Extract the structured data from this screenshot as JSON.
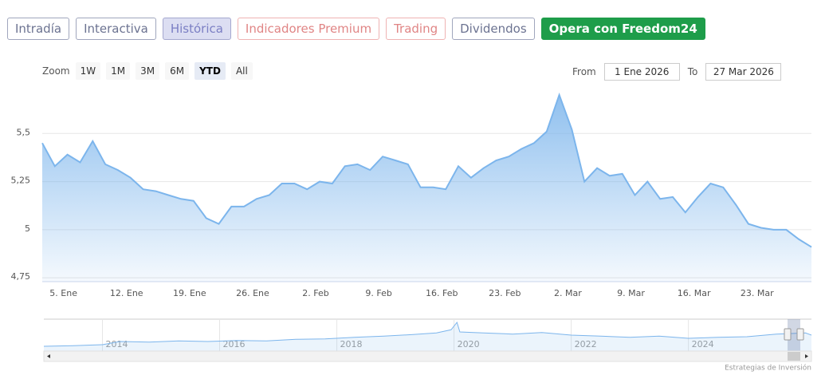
{
  "tabs": [
    "Intradía",
    "Interactiva",
    "Histórica",
    "Indicadores Premium",
    "Trading",
    "Dividendos",
    "Opera con Freedom24"
  ],
  "zoom": {
    "label": "Zoom",
    "buttons": [
      "1W",
      "1M",
      "3M",
      "6M",
      "YTD",
      "All"
    ]
  },
  "range": {
    "from_label": "From",
    "from": "1 Ene 2026",
    "to_label": "To",
    "to": "27 Mar 2026"
  },
  "credits": "Estrategias de Inversión",
  "chart_data": [
    {
      "type": "area",
      "color": "#7cb5ec",
      "categories": [
        null,
        null,
        "5. Ene",
        null,
        null,
        null,
        null,
        "12. Ene",
        null,
        null,
        null,
        null,
        "19. Ene",
        null,
        null,
        null,
        null,
        "26. Ene",
        null,
        null,
        null,
        null,
        "2. Feb",
        null,
        null,
        null,
        null,
        "9. Feb",
        null,
        null,
        null,
        null,
        "16. Feb",
        null,
        null,
        null,
        null,
        "23. Feb",
        null,
        null,
        null,
        null,
        "2. Mar",
        null,
        null,
        null,
        null,
        "9. Mar",
        null,
        null,
        null,
        null,
        "16. Mar",
        null,
        null,
        null,
        null,
        "23. Mar",
        null,
        null,
        null,
        null
      ],
      "values": [
        5.45,
        5.33,
        5.39,
        5.35,
        5.46,
        5.34,
        5.31,
        5.27,
        5.21,
        5.2,
        5.18,
        5.16,
        5.15,
        5.06,
        5.03,
        5.12,
        5.12,
        5.16,
        5.18,
        5.24,
        5.24,
        5.21,
        5.25,
        5.24,
        5.33,
        5.34,
        5.31,
        5.38,
        5.36,
        5.34,
        5.22,
        5.22,
        5.21,
        5.33,
        5.27,
        5.32,
        5.36,
        5.38,
        5.42,
        5.45,
        5.51,
        5.7,
        5.52,
        5.25,
        5.32,
        5.28,
        5.29,
        5.18,
        5.25,
        5.16,
        5.17,
        5.09,
        5.17,
        5.24,
        5.22,
        5.13,
        5.03,
        5.01,
        5.0,
        5.0,
        4.95,
        4.91
      ],
      "ylim": [
        4.73,
        5.725
      ],
      "yticks": [
        {
          "value": 4.75,
          "label": "4,75"
        },
        5,
        {
          "value": 5.25,
          "label": "5,25"
        },
        {
          "value": 5.5,
          "label": "5,5"
        }
      ],
      "grid": true
    },
    {
      "type": "navigator",
      "color": "#7cb5ec",
      "x": [
        2013.0,
        2013.5,
        2014.0,
        2014.3,
        2014.8,
        2015.3,
        2015.8,
        2016.3,
        2016.8,
        2017.3,
        2017.8,
        2018.3,
        2018.8,
        2019.3,
        2019.7,
        2019.95,
        2020.05,
        2020.1,
        2020.5,
        2021.0,
        2021.5,
        2022.0,
        2022.5,
        2023.0,
        2023.5,
        2024.0,
        2024.5,
        2025.0,
        2025.5,
        2026.0,
        2026.1
      ],
      "values": [
        3.05,
        3.1,
        3.2,
        3.5,
        3.45,
        3.55,
        3.5,
        3.6,
        3.55,
        3.7,
        3.75,
        3.9,
        4.0,
        4.15,
        4.3,
        4.6,
        5.3,
        4.4,
        4.3,
        4.2,
        4.35,
        4.1,
        4.0,
        3.9,
        4.0,
        3.8,
        3.9,
        3.95,
        4.2,
        4.3,
        4.1
      ],
      "xlim": [
        2013,
        2026.1
      ],
      "xticks": [
        2014,
        2016,
        2018,
        2020,
        2022,
        2024
      ],
      "ylim": [
        2.6,
        5.6
      ],
      "grid": true
    }
  ]
}
